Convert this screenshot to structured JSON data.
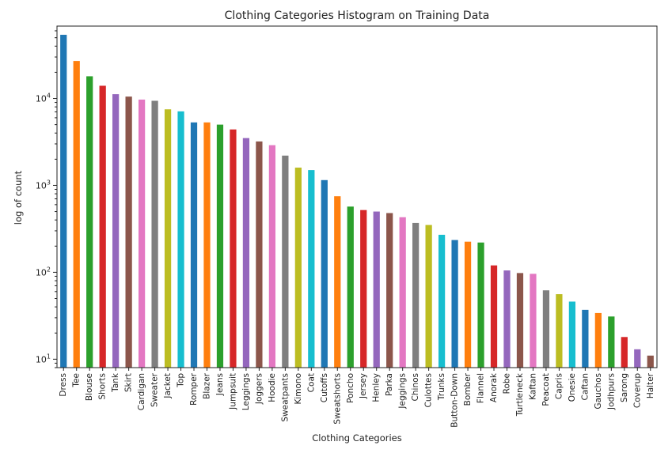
{
  "chart_data": {
    "type": "bar",
    "title": "Clothing Categories Histogram on Training Data",
    "xlabel": "Clothing Categories",
    "ylabel": "log of count",
    "yscale": "log",
    "ylim": [
      8,
      68000
    ],
    "grid": false,
    "legend": "none",
    "yticks": [
      {
        "value": 10,
        "base": "10",
        "exp": "1"
      },
      {
        "value": 100,
        "base": "10",
        "exp": "2"
      },
      {
        "value": 1000,
        "base": "10",
        "exp": "3"
      },
      {
        "value": 10000,
        "base": "10",
        "exp": "4"
      }
    ],
    "categories": [
      "Dress",
      "Tee",
      "Blouse",
      "Shorts",
      "Tank",
      "Skirt",
      "Cardigan",
      "Sweater",
      "Jacket",
      "Top",
      "Romper",
      "Blazer",
      "Jeans",
      "Jumpsuit",
      "Leggings",
      "Joggers",
      "Hoodie",
      "Sweatpants",
      "Kimono",
      "Coat",
      "Cutoffs",
      "Sweatshorts",
      "Poncho",
      "Jersey",
      "Henley",
      "Parka",
      "Jeggings",
      "Chinos",
      "Culottes",
      "Trunks",
      "Button-Down",
      "Bomber",
      "Flannel",
      "Anorak",
      "Robe",
      "Turtleneck",
      "Kaftan",
      "Peacoat",
      "Capris",
      "Onesie",
      "Caftan",
      "Gauchos",
      "Jodhpurs",
      "Sarong",
      "Coverup",
      "Halter"
    ],
    "values": [
      54000,
      27000,
      18000,
      14000,
      11200,
      10500,
      9700,
      9400,
      7500,
      7100,
      5300,
      5300,
      5000,
      4400,
      3500,
      3200,
      2900,
      2200,
      1600,
      1500,
      1150,
      750,
      570,
      520,
      500,
      480,
      430,
      370,
      350,
      270,
      235,
      225,
      220,
      120,
      105,
      98,
      96,
      62,
      56,
      46,
      37,
      34,
      31,
      18,
      13,
      11
    ],
    "colors": [
      "#1f77b4",
      "#ff7f0e",
      "#2ca02c",
      "#d62728",
      "#9467bd",
      "#8c564b",
      "#e377c2",
      "#7f7f7f",
      "#bcbd22",
      "#17becf"
    ]
  }
}
